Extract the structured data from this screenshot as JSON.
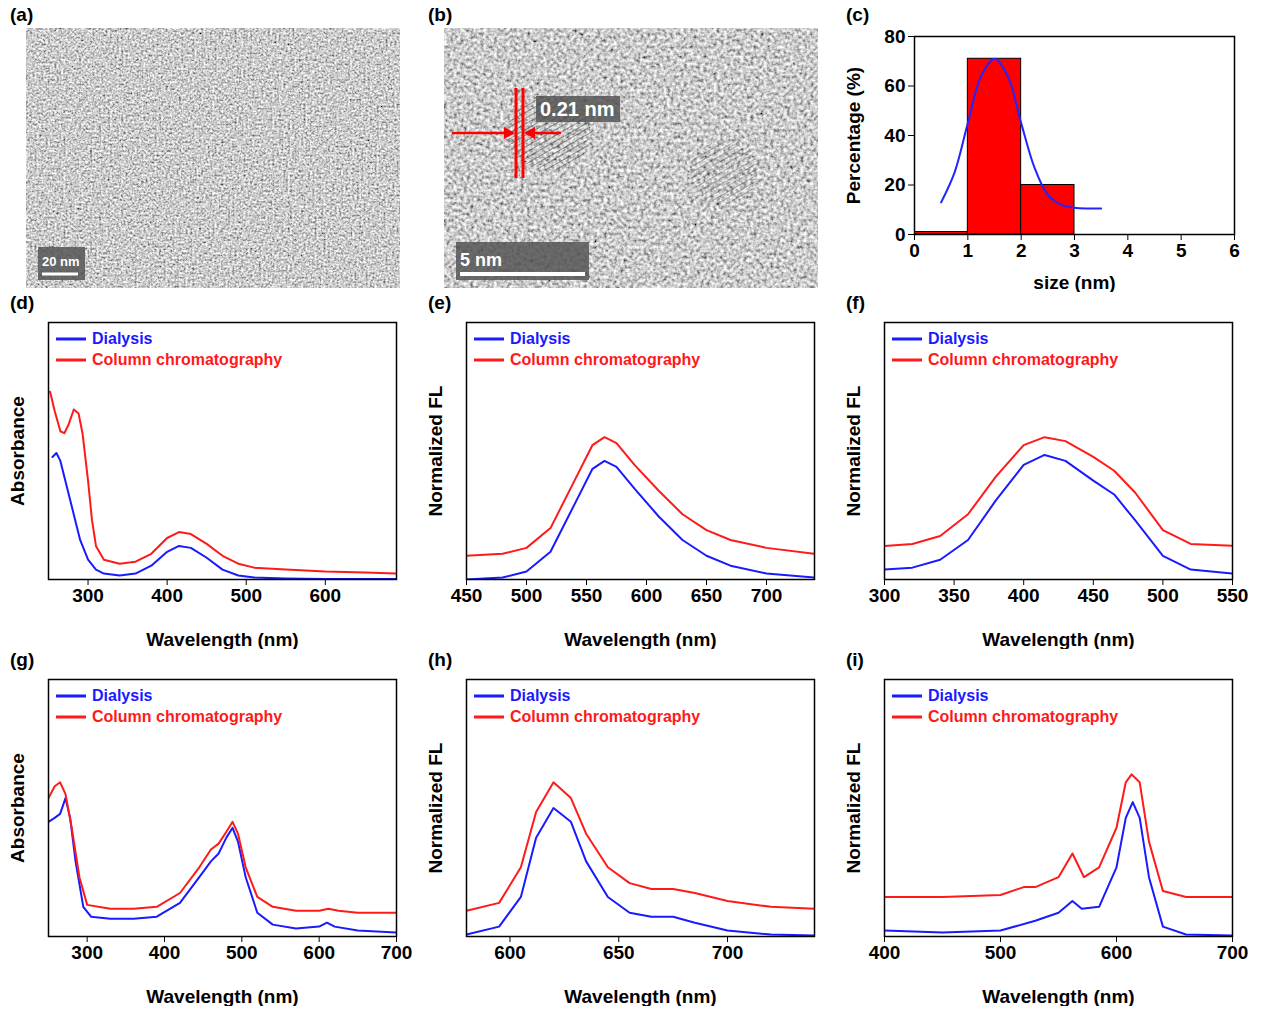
{
  "chart_data": [
    {
      "type": "image",
      "panel": "(a)",
      "scale_bar": "20 nm"
    },
    {
      "type": "image",
      "panel": "(b)",
      "scale_bar": "5 nm",
      "annotation": "0.21 nm"
    },
    {
      "type": "histogram",
      "panel": "(c)",
      "x_label": "size (nm)",
      "y_label": "Percentage (%)",
      "bins": [
        0,
        1,
        2,
        3
      ],
      "counts": [
        1,
        71,
        20
      ],
      "color": "#ff0000",
      "xlim": [
        0,
        6
      ],
      "xticks": [
        0,
        1,
        2,
        3,
        4,
        5,
        6
      ],
      "ylim": [
        0,
        80
      ],
      "yticks": [
        0,
        20,
        40,
        60,
        80
      ],
      "series": [
        {
          "type": "line",
          "color": "#2323ff",
          "x": [
            0.5,
            0.75,
            1.0,
            1.25,
            1.5,
            1.75,
            2.0,
            2.25,
            2.5,
            2.75,
            3.0,
            3.25,
            3.5
          ],
          "values": [
            13,
            25,
            45,
            64,
            71,
            64,
            45,
            27,
            16,
            12,
            10.8,
            10.5,
            10.5
          ]
        }
      ]
    },
    {
      "type": "line",
      "panel": "(d)",
      "x_label": "Wavelength (nm)",
      "y_label": "Absorbance",
      "xlim": [
        250,
        690
      ],
      "xticks": [
        300,
        400,
        500,
        600
      ],
      "ylim": [
        0,
        1.3
      ],
      "tick_labels": "x",
      "legend": "top-left",
      "series": [
        {
          "name": "Dialysis",
          "color": "#1a1aff",
          "x": [
            255,
            260,
            265,
            270,
            275,
            280,
            285,
            290,
            300,
            310,
            320,
            340,
            360,
            380,
            400,
            415,
            430,
            450,
            470,
            490,
            510,
            550,
            600,
            650,
            690
          ],
          "values": [
            0.62,
            0.64,
            0.6,
            0.52,
            0.44,
            0.36,
            0.28,
            0.2,
            0.1,
            0.05,
            0.03,
            0.02,
            0.03,
            0.07,
            0.14,
            0.17,
            0.16,
            0.11,
            0.05,
            0.02,
            0.01,
            0.005,
            0.003,
            0.002,
            0.002
          ]
        },
        {
          "name": "Column chromatography",
          "color": "#ff1a1a",
          "x": [
            252,
            258,
            265,
            270,
            275,
            282,
            288,
            293,
            300,
            305,
            310,
            320,
            340,
            360,
            380,
            400,
            415,
            430,
            450,
            470,
            490,
            510,
            550,
            600,
            650,
            690
          ],
          "values": [
            0.95,
            0.85,
            0.75,
            0.74,
            0.78,
            0.86,
            0.84,
            0.74,
            0.5,
            0.3,
            0.17,
            0.1,
            0.08,
            0.09,
            0.13,
            0.21,
            0.24,
            0.23,
            0.18,
            0.12,
            0.08,
            0.06,
            0.05,
            0.04,
            0.035,
            0.03
          ]
        }
      ]
    },
    {
      "type": "line",
      "panel": "(e)",
      "x_label": "Wavelength (nm)",
      "y_label": "Normalized FL",
      "xlim": [
        450,
        740
      ],
      "xticks": [
        450,
        500,
        550,
        600,
        650,
        700
      ],
      "ylim": [
        0,
        1.3
      ],
      "tick_labels": "x",
      "legend": "top-left",
      "series": [
        {
          "name": "Dialysis",
          "color": "#1a1aff",
          "x": [
            450,
            480,
            500,
            520,
            540,
            555,
            565,
            575,
            590,
            610,
            630,
            650,
            670,
            700,
            740
          ],
          "values": [
            0.0,
            0.01,
            0.04,
            0.14,
            0.38,
            0.56,
            0.6,
            0.57,
            0.46,
            0.32,
            0.2,
            0.12,
            0.07,
            0.03,
            0.01
          ]
        },
        {
          "name": "Column chromatography",
          "color": "#ff1a1a",
          "x": [
            450,
            480,
            500,
            520,
            540,
            555,
            565,
            575,
            590,
            610,
            630,
            650,
            670,
            700,
            740
          ],
          "values": [
            0.12,
            0.13,
            0.16,
            0.26,
            0.5,
            0.68,
            0.72,
            0.69,
            0.58,
            0.45,
            0.33,
            0.25,
            0.2,
            0.16,
            0.13
          ]
        }
      ]
    },
    {
      "type": "line",
      "panel": "(f)",
      "x_label": "Wavelength (nm)",
      "y_label": "Normalized FL",
      "xlim": [
        300,
        550
      ],
      "xticks": [
        300,
        350,
        400,
        450,
        500,
        550
      ],
      "ylim": [
        0,
        1.3
      ],
      "tick_labels": "x",
      "legend": "top-left",
      "series": [
        {
          "name": "Dialysis",
          "color": "#1a1aff",
          "x": [
            300,
            320,
            340,
            360,
            380,
            400,
            415,
            430,
            450,
            465,
            480,
            500,
            520,
            550
          ],
          "values": [
            0.05,
            0.06,
            0.1,
            0.2,
            0.4,
            0.58,
            0.63,
            0.6,
            0.5,
            0.43,
            0.3,
            0.12,
            0.05,
            0.03
          ]
        },
        {
          "name": "Column chromatography",
          "color": "#ff1a1a",
          "x": [
            300,
            320,
            340,
            360,
            380,
            400,
            415,
            430,
            450,
            465,
            480,
            500,
            520,
            550
          ],
          "values": [
            0.17,
            0.18,
            0.22,
            0.33,
            0.52,
            0.68,
            0.72,
            0.7,
            0.62,
            0.55,
            0.44,
            0.25,
            0.18,
            0.17
          ]
        }
      ]
    },
    {
      "type": "line",
      "panel": "(g)",
      "x_label": "Wavelength (nm)",
      "y_label": "Absorbance",
      "xlim": [
        250,
        700
      ],
      "xticks": [
        300,
        400,
        500,
        600,
        700
      ],
      "ylim": [
        0,
        1.3
      ],
      "tick_labels": "x",
      "legend": "top-left",
      "series": [
        {
          "name": "Dialysis",
          "color": "#1a1aff",
          "x": [
            250,
            258,
            265,
            272,
            278,
            285,
            295,
            305,
            330,
            360,
            390,
            420,
            445,
            460,
            470,
            480,
            488,
            495,
            505,
            520,
            540,
            570,
            600,
            610,
            620,
            650,
            700
          ],
          "values": [
            0.58,
            0.6,
            0.62,
            0.7,
            0.6,
            0.38,
            0.15,
            0.1,
            0.09,
            0.09,
            0.1,
            0.17,
            0.3,
            0.38,
            0.42,
            0.5,
            0.55,
            0.48,
            0.3,
            0.12,
            0.06,
            0.04,
            0.05,
            0.07,
            0.05,
            0.03,
            0.02
          ]
        },
        {
          "name": "Column chromatography",
          "color": "#ff1a1a",
          "x": [
            250,
            258,
            265,
            272,
            280,
            290,
            300,
            330,
            360,
            390,
            420,
            445,
            460,
            470,
            480,
            488,
            495,
            505,
            520,
            540,
            570,
            600,
            612,
            625,
            650,
            700
          ],
          "values": [
            0.7,
            0.76,
            0.78,
            0.72,
            0.55,
            0.3,
            0.16,
            0.14,
            0.14,
            0.15,
            0.22,
            0.35,
            0.44,
            0.47,
            0.53,
            0.58,
            0.52,
            0.35,
            0.2,
            0.15,
            0.13,
            0.13,
            0.14,
            0.13,
            0.12,
            0.12
          ]
        }
      ]
    },
    {
      "type": "line",
      "panel": "(h)",
      "x_label": "Wavelength (nm)",
      "y_label": "Normalized FL",
      "xlim": [
        580,
        740
      ],
      "xticks": [
        600,
        650,
        700
      ],
      "ylim": [
        0,
        1.3
      ],
      "tick_labels": "x",
      "legend": "top-left",
      "series": [
        {
          "name": "Dialysis",
          "color": "#1a1aff",
          "x": [
            580,
            595,
            605,
            612,
            620,
            628,
            635,
            645,
            655,
            665,
            675,
            685,
            700,
            720,
            740
          ],
          "values": [
            0.01,
            0.05,
            0.2,
            0.5,
            0.65,
            0.58,
            0.38,
            0.2,
            0.12,
            0.1,
            0.1,
            0.07,
            0.03,
            0.01,
            0.005
          ]
        },
        {
          "name": "Column chromatography",
          "color": "#ff1a1a",
          "x": [
            580,
            595,
            605,
            612,
            620,
            628,
            635,
            645,
            655,
            665,
            675,
            685,
            700,
            720,
            740
          ],
          "values": [
            0.13,
            0.17,
            0.35,
            0.63,
            0.78,
            0.7,
            0.52,
            0.35,
            0.27,
            0.24,
            0.24,
            0.22,
            0.18,
            0.15,
            0.14
          ]
        }
      ]
    },
    {
      "type": "line",
      "panel": "(i)",
      "x_label": "Wavelength (nm)",
      "y_label": "Normalized FL",
      "xlim": [
        400,
        700
      ],
      "xticks": [
        400,
        500,
        600,
        700
      ],
      "ylim": [
        0,
        1.3
      ],
      "tick_labels": "x",
      "legend": "top-left",
      "series": [
        {
          "name": "Dialysis",
          "color": "#1a1aff",
          "x": [
            400,
            450,
            500,
            530,
            550,
            562,
            570,
            585,
            600,
            608,
            614,
            620,
            628,
            640,
            660,
            700
          ],
          "values": [
            0.03,
            0.02,
            0.03,
            0.08,
            0.12,
            0.18,
            0.14,
            0.15,
            0.35,
            0.6,
            0.68,
            0.6,
            0.3,
            0.05,
            0.01,
            0.005
          ]
        },
        {
          "name": "Column chromatography",
          "color": "#ff1a1a",
          "x": [
            400,
            450,
            500,
            520,
            530,
            550,
            562,
            572,
            585,
            600,
            608,
            613,
            620,
            628,
            640,
            660,
            700
          ],
          "values": [
            0.2,
            0.2,
            0.21,
            0.25,
            0.25,
            0.3,
            0.42,
            0.3,
            0.35,
            0.55,
            0.78,
            0.82,
            0.78,
            0.48,
            0.23,
            0.2,
            0.2
          ]
        }
      ]
    }
  ]
}
